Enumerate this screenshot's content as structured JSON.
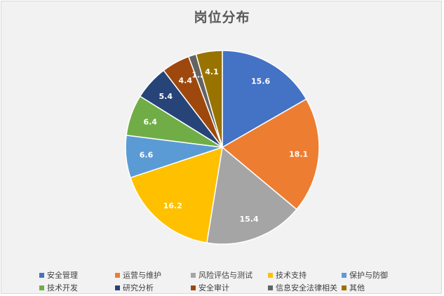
{
  "chart_data": {
    "type": "pie",
    "title": "岗位分布",
    "categories": [
      "安全管理",
      "运营与维护",
      "风险评估与测试",
      "技术支持",
      "保护与防御",
      "技术开发",
      "研究分析",
      "安全审计",
      "信息安全法律相关",
      "其他"
    ],
    "values": [
      15.6,
      18.1,
      15.4,
      16.2,
      6.6,
      6.4,
      5.4,
      4.4,
      1.2,
      4.1
    ],
    "data_labels": [
      "15.6",
      "18.1",
      "15.4",
      "16.2",
      "6.6",
      "6.4",
      "5.4",
      "4.4",
      "1.2",
      "4.1"
    ],
    "colors": [
      "#4472c4",
      "#ed7d31",
      "#a5a5a5",
      "#ffc000",
      "#5b9bd5",
      "#70ad47",
      "#264478",
      "#9e480e",
      "#636363",
      "#997300"
    ],
    "start_angle": "12 o'clock",
    "direction": "clockwise",
    "legend_position": "bottom"
  }
}
